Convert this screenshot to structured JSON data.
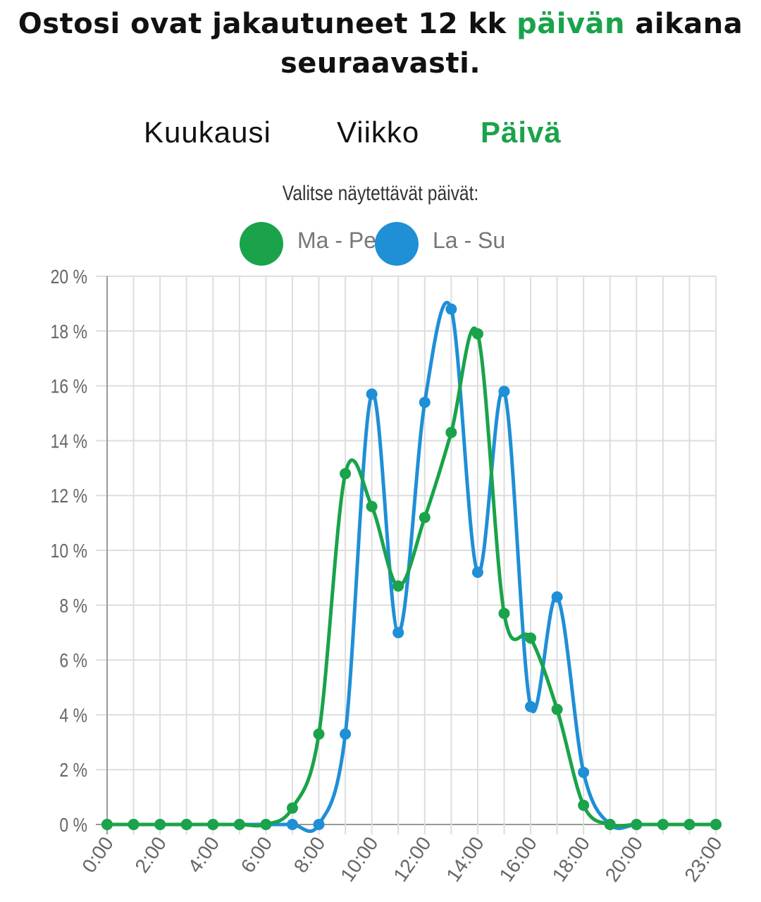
{
  "header": {
    "title_part1": "Ostosi ovat jakautuneet 12 kk ",
    "title_accent": "päivän",
    "title_part2": " aikana seuraavasti."
  },
  "tabs": [
    {
      "label": "Kuukausi",
      "active": false
    },
    {
      "label": "Viikko",
      "active": false
    },
    {
      "label": "Päivä",
      "active": true
    }
  ],
  "legend": {
    "subtitle": "Valitse näytettävät päivät:",
    "items": [
      {
        "label": "Ma - Pe",
        "color": "#1aa34a"
      },
      {
        "label": "La - Su",
        "color": "#1f8fd6"
      }
    ]
  },
  "colors": {
    "accent": "#1aa34a",
    "series1": "#1aa34a",
    "series2": "#1f8fd6",
    "grid": "#dddddd",
    "axis": "#999999"
  },
  "chart_data": {
    "type": "line",
    "x": [
      "0:00",
      "1:00",
      "2:00",
      "3:00",
      "4:00",
      "5:00",
      "6:00",
      "7:00",
      "8:00",
      "9:00",
      "10:00",
      "11:00",
      "12:00",
      "13:00",
      "14:00",
      "15:00",
      "16:00",
      "17:00",
      "18:00",
      "19:00",
      "20:00",
      "21:00",
      "22:00",
      "23:00"
    ],
    "tick_labels": [
      "0:00",
      "",
      "2:00",
      "",
      "4:00",
      "",
      "6:00",
      "",
      "8:00",
      "",
      "10:00",
      "",
      "12:00",
      "",
      "14:00",
      "",
      "16:00",
      "",
      "18:00",
      "",
      "20:00",
      "",
      "",
      "23:00"
    ],
    "y_tick_labels": [
      "0 %",
      "2 %",
      "4 %",
      "6 %",
      "8 %",
      "10 %",
      "12 %",
      "14 %",
      "16 %",
      "18 %",
      "20 %"
    ],
    "ylim": [
      0,
      20
    ],
    "y_step": 2,
    "series": [
      {
        "name": "Ma - Pe",
        "values": [
          0,
          0,
          0,
          0,
          0,
          0,
          0,
          0.6,
          3.3,
          12.8,
          11.6,
          8.7,
          11.2,
          14.3,
          17.9,
          7.7,
          6.8,
          4.2,
          0.7,
          0,
          0,
          0,
          0,
          0
        ]
      },
      {
        "name": "La - Su",
        "values": [
          0,
          0,
          0,
          0,
          0,
          0,
          0,
          0,
          0,
          3.3,
          15.7,
          7.0,
          15.4,
          18.8,
          9.2,
          15.8,
          4.3,
          8.3,
          1.9,
          0,
          0,
          0,
          0,
          0
        ]
      }
    ],
    "grid": true
  }
}
